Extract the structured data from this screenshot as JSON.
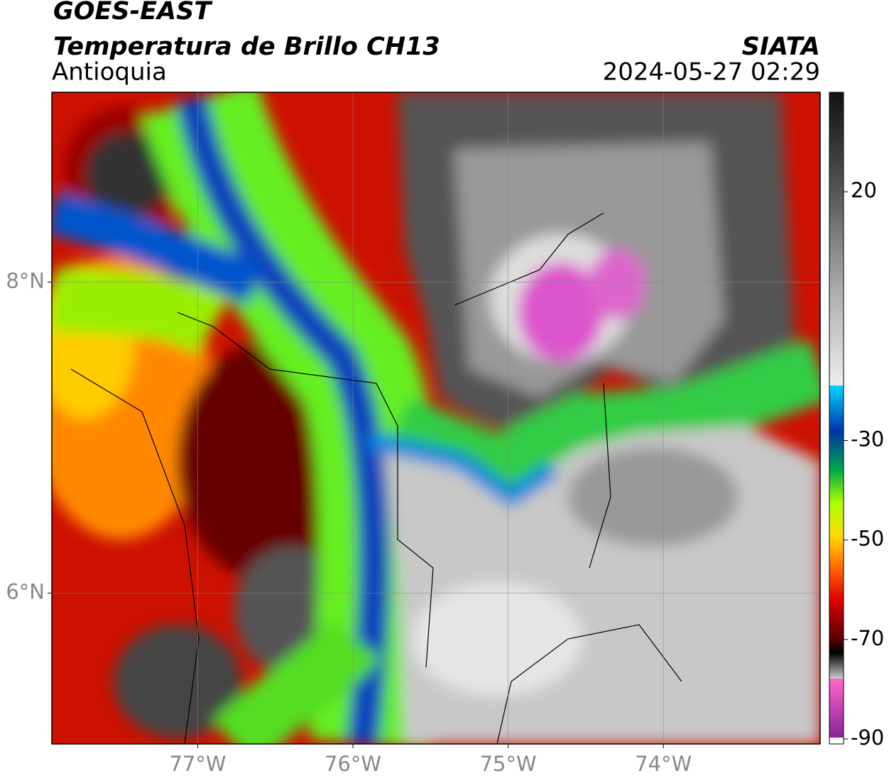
{
  "header": {
    "satellite": "GOES-EAST",
    "product": "Temperatura de Brillo CH13",
    "region": "Antioquia",
    "agency": "SIATA",
    "datetime": "2024-05-27 02:29"
  },
  "map": {
    "xlim": [
      -77.94,
      -72.99
    ],
    "ylim": [
      5.03,
      9.22
    ],
    "xticks": [
      {
        "value": -77,
        "label": "77°W"
      },
      {
        "value": -76,
        "label": "76°W"
      },
      {
        "value": -75,
        "label": "75°W"
      },
      {
        "value": -74,
        "label": "74°W"
      }
    ],
    "yticks": [
      {
        "value": 8,
        "label": "8°N"
      },
      {
        "value": 6,
        "label": "6°N"
      }
    ],
    "grid": true
  },
  "colorbar": {
    "lim": [
      -91,
      40
    ],
    "ticks": [
      20,
      -30,
      -50,
      -70,
      -90
    ]
  }
}
